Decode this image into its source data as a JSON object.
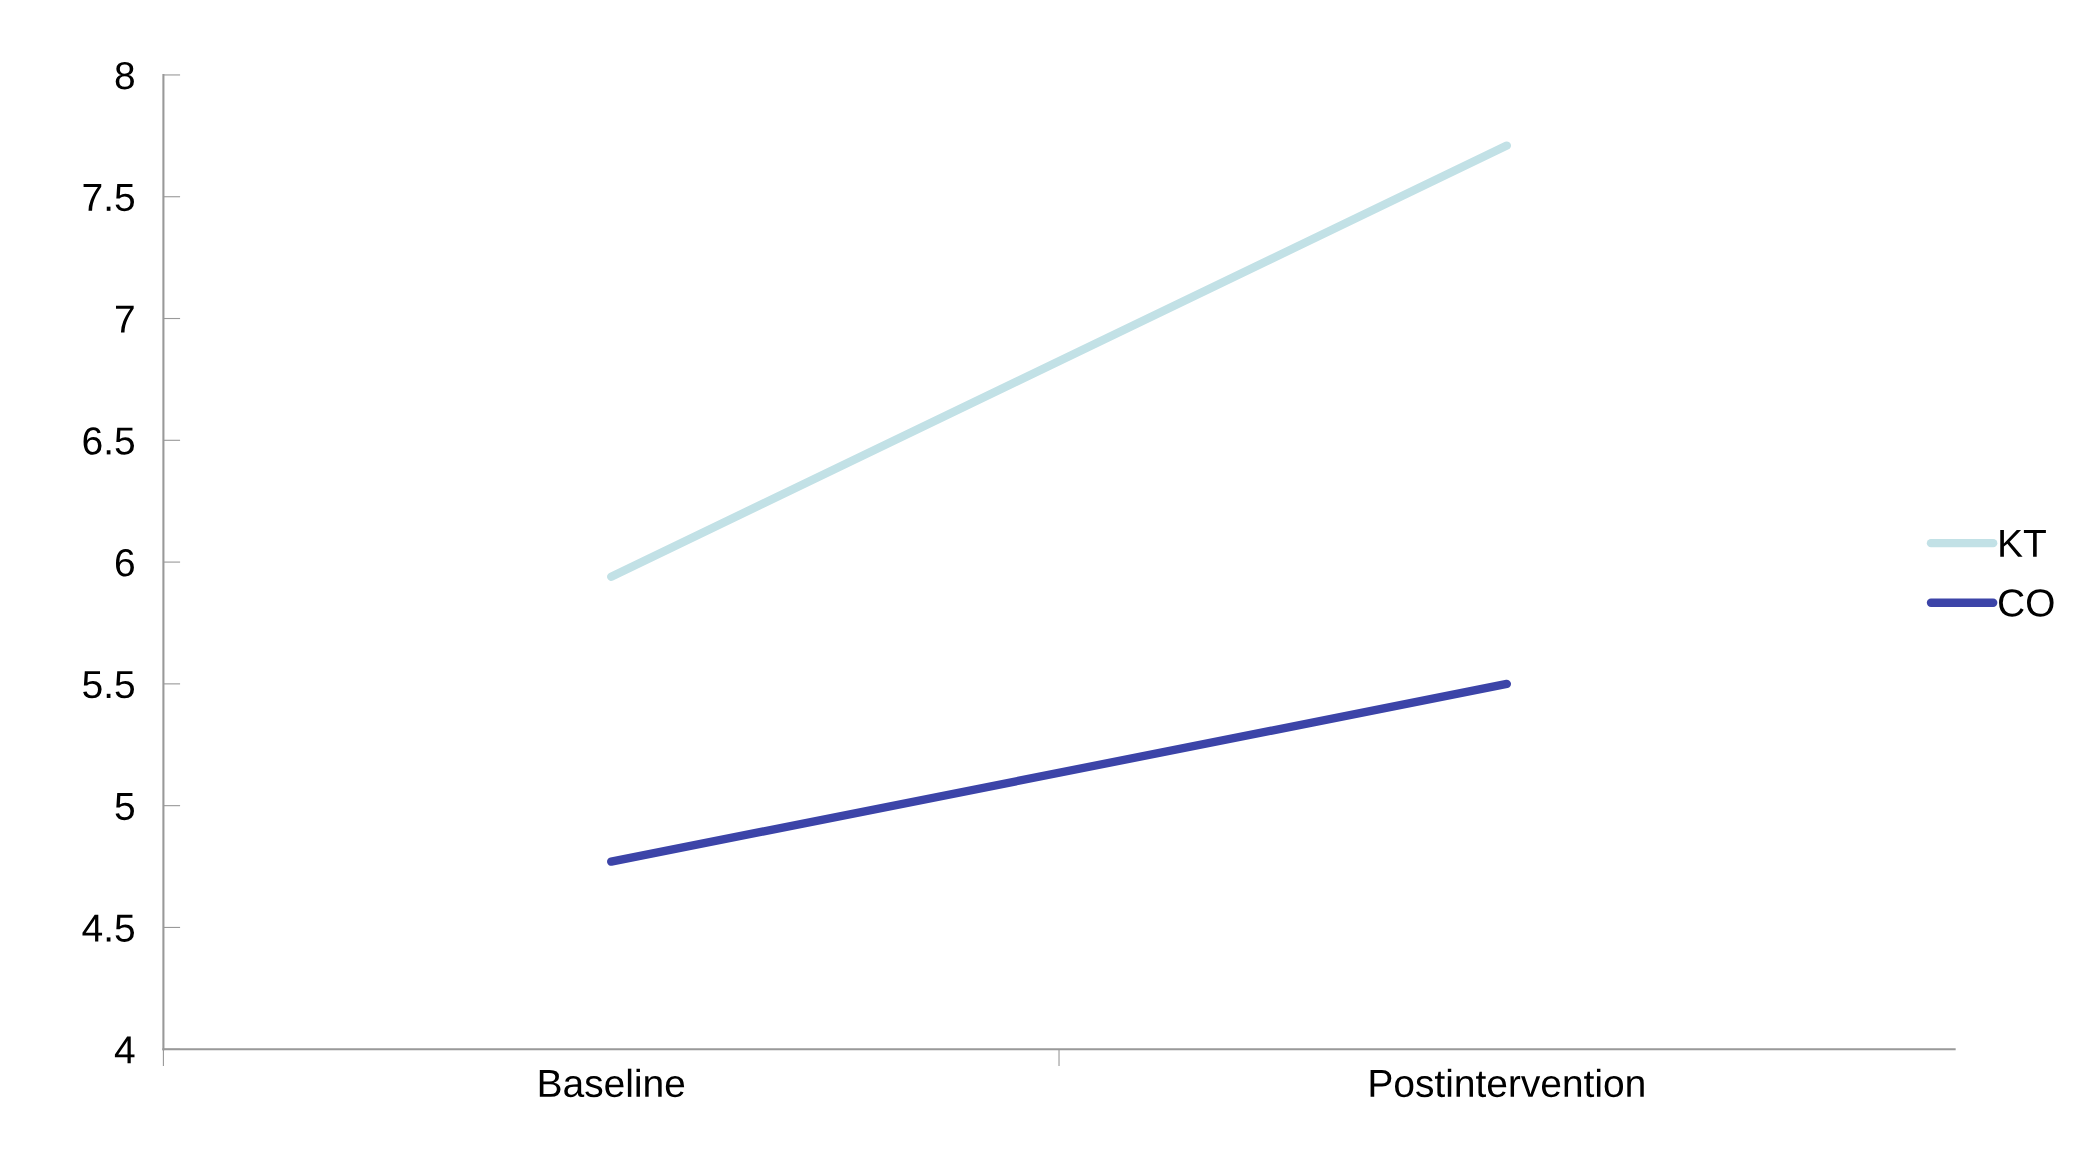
{
  "chart_data": {
    "type": "line",
    "categories": [
      "Baseline",
      "Postintervention"
    ],
    "series": [
      {
        "name": "KT",
        "color": "#c2e1e6",
        "values": [
          5.94,
          7.71
        ]
      },
      {
        "name": "CO",
        "color": "#3c44a8",
        "values": [
          4.77,
          5.5
        ]
      }
    ],
    "ylim": [
      4,
      8
    ],
    "yticks": [
      4,
      4.5,
      5,
      5.5,
      6,
      6.5,
      7,
      7.5,
      8
    ],
    "grid": false,
    "legend": "right",
    "marker": "none",
    "line_style": "solid"
  }
}
